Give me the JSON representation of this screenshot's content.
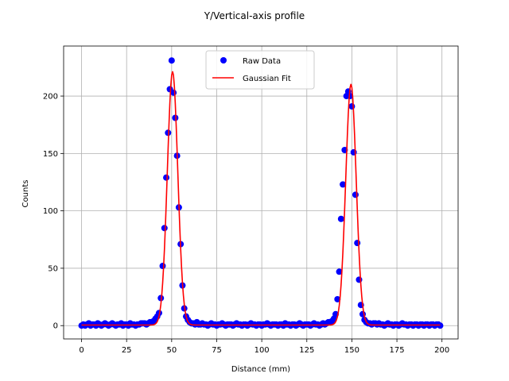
{
  "chart_data": {
    "type": "scatter",
    "title": "Y/Vertical-axis profile",
    "xlabel": "Distance (mm)",
    "ylabel": "Counts",
    "xlim": [
      -9.95,
      208.95
    ],
    "ylim": [
      -11.6,
      243.6
    ],
    "xticks": [
      0,
      25,
      50,
      75,
      100,
      125,
      150,
      175,
      200
    ],
    "yticks": [
      0,
      50,
      100,
      150,
      200
    ],
    "grid": true,
    "legend_position": "top-center",
    "series": [
      {
        "name": "Raw Data",
        "kind": "markers",
        "color": "#0000ff",
        "x": [
          0,
          1,
          2,
          3,
          4,
          5,
          6,
          7,
          8,
          9,
          10,
          11,
          12,
          13,
          14,
          15,
          16,
          17,
          18,
          19,
          20,
          21,
          22,
          23,
          24,
          25,
          26,
          27,
          28,
          29,
          30,
          31,
          32,
          33,
          34,
          35,
          36,
          37,
          38,
          39,
          40,
          41,
          42,
          43,
          44,
          45,
          46,
          47,
          48,
          49,
          50,
          51,
          52,
          53,
          54,
          55,
          56,
          57,
          58,
          59,
          60,
          61,
          62,
          63,
          64,
          65,
          66,
          67,
          68,
          69,
          70,
          71,
          72,
          73,
          74,
          75,
          76,
          77,
          78,
          79,
          80,
          81,
          82,
          83,
          84,
          85,
          86,
          87,
          88,
          89,
          90,
          91,
          92,
          93,
          94,
          95,
          96,
          97,
          98,
          99,
          100,
          101,
          102,
          103,
          104,
          105,
          106,
          107,
          108,
          109,
          110,
          111,
          112,
          113,
          114,
          115,
          116,
          117,
          118,
          119,
          120,
          121,
          122,
          123,
          124,
          125,
          126,
          127,
          128,
          129,
          130,
          131,
          132,
          133,
          134,
          135,
          136,
          137,
          138,
          139,
          140,
          141,
          142,
          143,
          144,
          145,
          146,
          147,
          148,
          149,
          150,
          151,
          152,
          153,
          154,
          155,
          156,
          157,
          158,
          159,
          160,
          161,
          162,
          163,
          164,
          165,
          166,
          167,
          168,
          169,
          170,
          171,
          172,
          173,
          174,
          175,
          176,
          177,
          178,
          179,
          180,
          181,
          182,
          183,
          184,
          185,
          186,
          187,
          188,
          189,
          190,
          191,
          192,
          193,
          194,
          195,
          196,
          197,
          198,
          199
        ],
        "y": [
          0,
          1,
          0,
          1,
          2,
          0,
          1,
          1,
          0,
          2,
          1,
          0,
          1,
          2,
          1,
          0,
          1,
          2,
          1,
          0,
          1,
          1,
          2,
          0,
          1,
          1,
          0,
          2,
          1,
          1,
          0,
          1,
          1,
          2,
          2,
          2,
          1,
          2,
          3,
          3,
          4,
          6,
          8,
          11,
          24,
          52,
          85,
          129,
          168,
          206,
          231,
          203,
          181,
          148,
          103,
          71,
          35,
          15,
          8,
          5,
          3,
          2,
          2,
          1,
          3,
          1,
          1,
          2,
          1,
          1,
          0,
          1,
          2,
          1,
          1,
          0,
          1,
          1,
          2,
          1,
          0,
          1,
          1,
          1,
          0,
          1,
          2,
          1,
          1,
          0,
          1,
          1,
          0,
          1,
          2,
          1,
          1,
          0,
          1,
          1,
          0,
          1,
          1,
          2,
          1,
          0,
          1,
          1,
          1,
          0,
          1,
          1,
          0,
          2,
          1,
          1,
          0,
          1,
          1,
          0,
          1,
          2,
          1,
          0,
          1,
          1,
          1,
          0,
          1,
          2,
          1,
          1,
          0,
          1,
          2,
          1,
          2,
          3,
          3,
          4,
          6,
          10,
          23,
          47,
          93,
          123,
          153,
          200,
          204,
          200,
          191,
          151,
          114,
          72,
          40,
          18,
          10,
          5,
          3,
          2,
          2,
          1,
          2,
          2,
          1,
          2,
          1,
          1,
          0,
          1,
          2,
          1,
          1,
          0,
          1,
          1,
          0,
          1,
          2,
          1,
          1,
          0,
          1,
          1,
          0,
          1,
          1,
          0,
          1,
          1,
          0,
          1,
          1,
          0,
          1,
          1,
          0,
          1,
          1,
          0
        ]
      },
      {
        "name": "Gaussian Fit",
        "kind": "line",
        "color": "#ff0000",
        "peaks": [
          {
            "center": 50.5,
            "amplitude": 221,
            "sigma": 2.9
          },
          {
            "center": 149.5,
            "amplitude": 210,
            "sigma": 2.9
          }
        ],
        "baseline": 0.5
      }
    ]
  }
}
